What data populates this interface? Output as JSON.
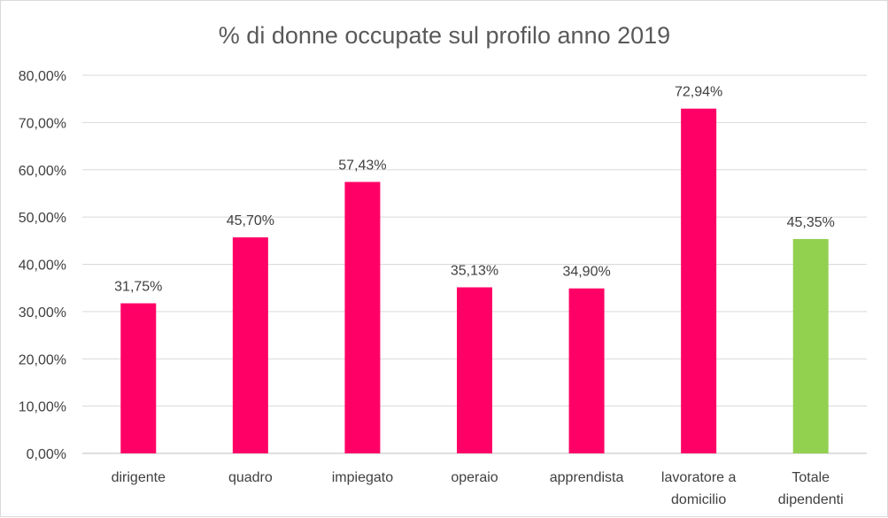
{
  "chart_data": {
    "type": "bar",
    "title": "% di donne occupate sul profilo anno 2019",
    "xlabel": "",
    "ylabel": "",
    "ylim": [
      0,
      80
    ],
    "yticks": [
      0,
      10,
      20,
      30,
      40,
      50,
      60,
      70,
      80
    ],
    "ytick_labels": [
      "0,00%",
      "10,00%",
      "20,00%",
      "30,00%",
      "40,00%",
      "50,00%",
      "60,00%",
      "70,00%",
      "80,00%"
    ],
    "categories": [
      [
        "dirigente"
      ],
      [
        "quadro"
      ],
      [
        "impiegato"
      ],
      [
        "operaio"
      ],
      [
        "apprendista"
      ],
      [
        "lavoratore a",
        "domicilio"
      ],
      [
        "Totale",
        "dipendenti"
      ]
    ],
    "values": [
      31.75,
      45.7,
      57.43,
      35.13,
      34.9,
      72.94,
      45.35
    ],
    "value_labels": [
      "31,75%",
      "45,70%",
      "57,43%",
      "35,13%",
      "34,90%",
      "72,94%",
      "45,35%"
    ],
    "bar_colors": [
      "#ff0066",
      "#ff0066",
      "#ff0066",
      "#ff0066",
      "#ff0066",
      "#ff0066",
      "#92d050"
    ],
    "grid": true,
    "legend": "none"
  }
}
